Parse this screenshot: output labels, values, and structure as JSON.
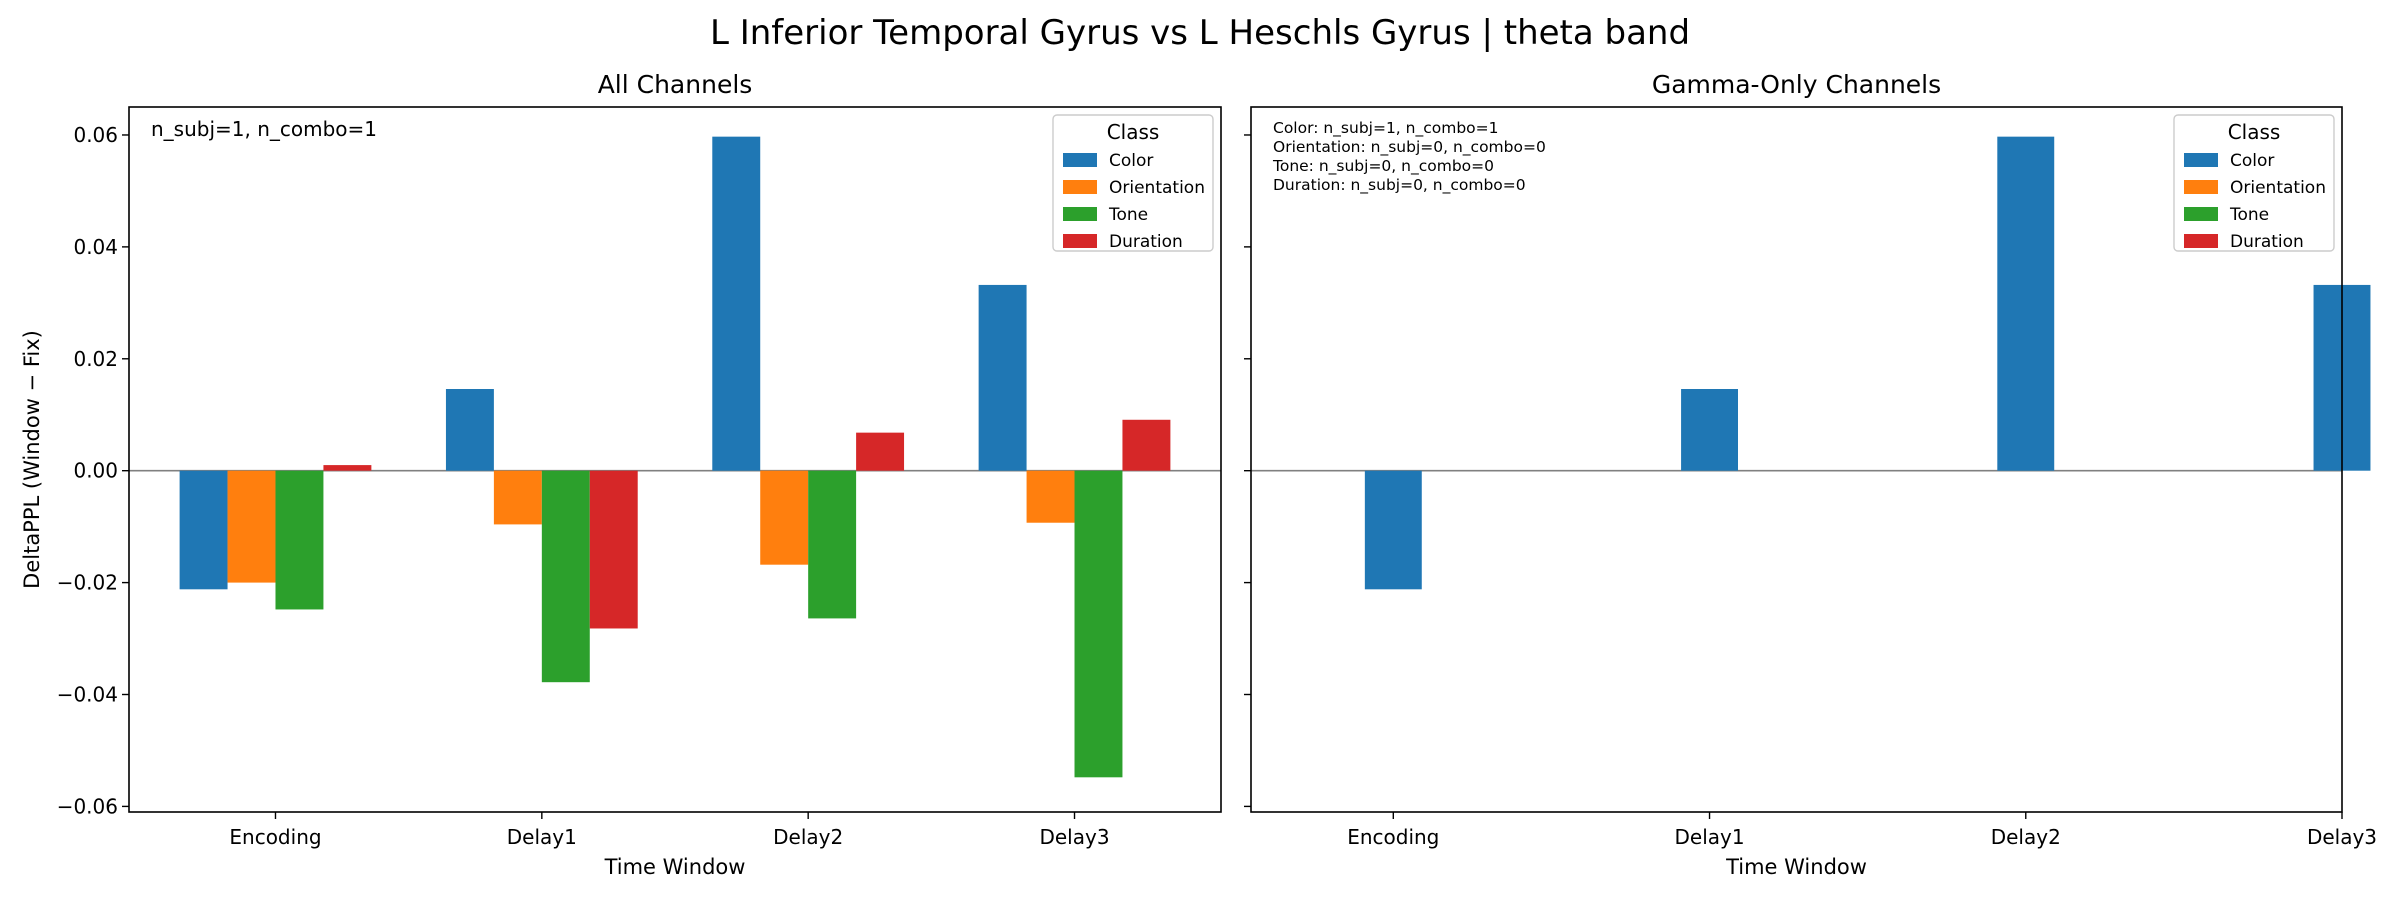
{
  "suptitle": "L Inferior Temporal Gyrus vs L Heschls Gyrus  |  theta band",
  "chart_data": [
    {
      "type": "bar",
      "title": "All Channels",
      "xlabel": "Time Window",
      "ylabel": "DeltaPPL (Window − Fix)",
      "categories": [
        "Encoding",
        "Delay1",
        "Delay2",
        "Delay3"
      ],
      "ylim": [
        -0.061,
        0.065
      ],
      "yticks": [
        -0.06,
        -0.04,
        -0.02,
        0.0,
        0.02,
        0.04,
        0.06
      ],
      "ytick_labels": [
        "−0.06",
        "−0.04",
        "−0.02",
        "0.00",
        "0.02",
        "0.04",
        "0.06"
      ],
      "show_yticklabels": true,
      "zero_line": true,
      "legend_title": "Class",
      "legend_location": "top-right",
      "annotation": [
        "n_subj=1, n_combo=1"
      ],
      "series": [
        {
          "name": "Color",
          "color": "#1f77b4",
          "values": [
            -0.0212,
            0.0146,
            0.0597,
            0.0332
          ]
        },
        {
          "name": "Orientation",
          "color": "#ff7f0e",
          "values": [
            -0.02,
            -0.0096,
            -0.0168,
            -0.0093
          ]
        },
        {
          "name": "Tone",
          "color": "#2ca02c",
          "values": [
            -0.0248,
            -0.0378,
            -0.0264,
            -0.0548
          ]
        },
        {
          "name": "Duration",
          "color": "#d62728",
          "values": [
            0.001,
            -0.0282,
            0.0068,
            0.0091
          ]
        }
      ]
    },
    {
      "type": "bar",
      "title": "Gamma-Only Channels",
      "xlabel": "Time Window",
      "ylabel": "",
      "categories": [
        "Encoding",
        "Delay1",
        "Delay2",
        "Delay3"
      ],
      "ylim": [
        -0.061,
        0.065
      ],
      "yticks": [
        -0.06,
        -0.04,
        -0.02,
        0.0,
        0.02,
        0.04,
        0.06
      ],
      "ytick_labels": [
        "",
        "",
        "",
        "",
        "",
        "",
        ""
      ],
      "show_yticklabels": false,
      "zero_line": true,
      "legend_title": "Class",
      "legend_location": "top-right",
      "annotation": [
        "Color: n_subj=1, n_combo=1",
        "Orientation: n_subj=0, n_combo=0",
        "Tone: n_subj=0, n_combo=0",
        "Duration: n_subj=0, n_combo=0"
      ],
      "series": [
        {
          "name": "Color",
          "color": "#1f77b4",
          "values": [
            -0.0212,
            0.0146,
            0.0597,
            0.0332
          ]
        },
        {
          "name": "Orientation",
          "color": "#ff7f0e",
          "values": [
            null,
            null,
            null,
            null
          ]
        },
        {
          "name": "Tone",
          "color": "#2ca02c",
          "values": [
            null,
            null,
            null,
            null
          ]
        },
        {
          "name": "Duration",
          "color": "#d62728",
          "values": [
            null,
            null,
            null,
            null
          ]
        }
      ]
    }
  ]
}
